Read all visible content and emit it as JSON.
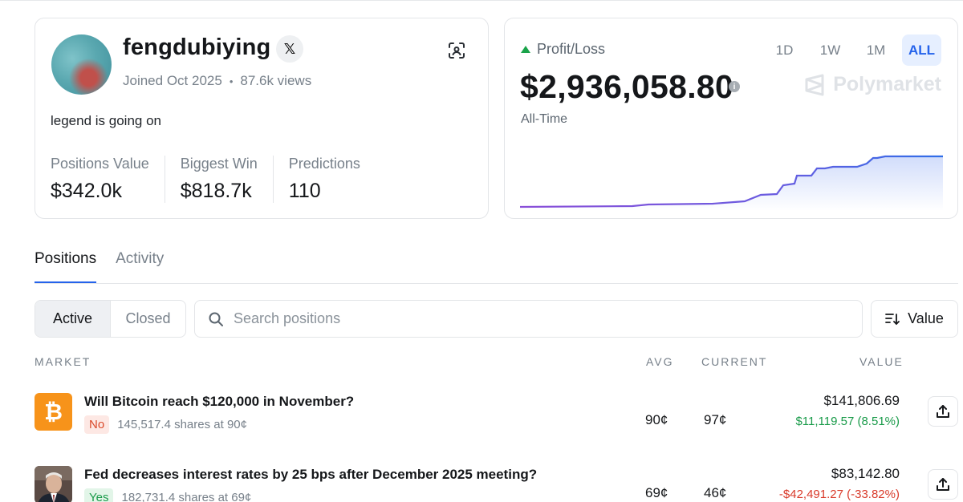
{
  "profile": {
    "username": "fengdubiying",
    "x_badge": "𝕏",
    "joined": "Joined Oct 2025",
    "views": "87.6k views",
    "bio": "legend is going on",
    "stats": [
      {
        "label": "Positions Value",
        "value": "$342.0k"
      },
      {
        "label": "Biggest Win",
        "value": "$818.7k"
      },
      {
        "label": "Predictions",
        "value": "110"
      }
    ]
  },
  "pnl": {
    "label": "Profit/Loss",
    "value": "$2,936,058.80",
    "period_label": "All-Time",
    "ranges": [
      "1D",
      "1W",
      "1M",
      "ALL"
    ],
    "active_range": "ALL",
    "brand": "Polymarket"
  },
  "tabs": [
    "Positions",
    "Activity"
  ],
  "filters": {
    "active": "Active",
    "closed": "Closed"
  },
  "search": {
    "placeholder": "Search positions"
  },
  "sort": {
    "label": "Value"
  },
  "table": {
    "headers": {
      "market": "MARKET",
      "avg": "AVG",
      "current": "CURRENT",
      "value": "VALUE"
    },
    "rows": [
      {
        "title": "Will Bitcoin reach $120,000 in November?",
        "outcome": "No",
        "shares": "145,517.4 shares at 90¢",
        "avg": "90¢",
        "current": "97¢",
        "value": "$141,806.69",
        "change": "$11,119.57 (8.51%)"
      },
      {
        "title": "Fed decreases interest rates by 25 bps after December 2025 meeting?",
        "outcome": "Yes",
        "shares": "182,731.4 shares at 69¢",
        "avg": "69¢",
        "current": "46¢",
        "value": "$83,142.80",
        "change": "-$42,491.27 (-33.82%)"
      }
    ]
  }
}
